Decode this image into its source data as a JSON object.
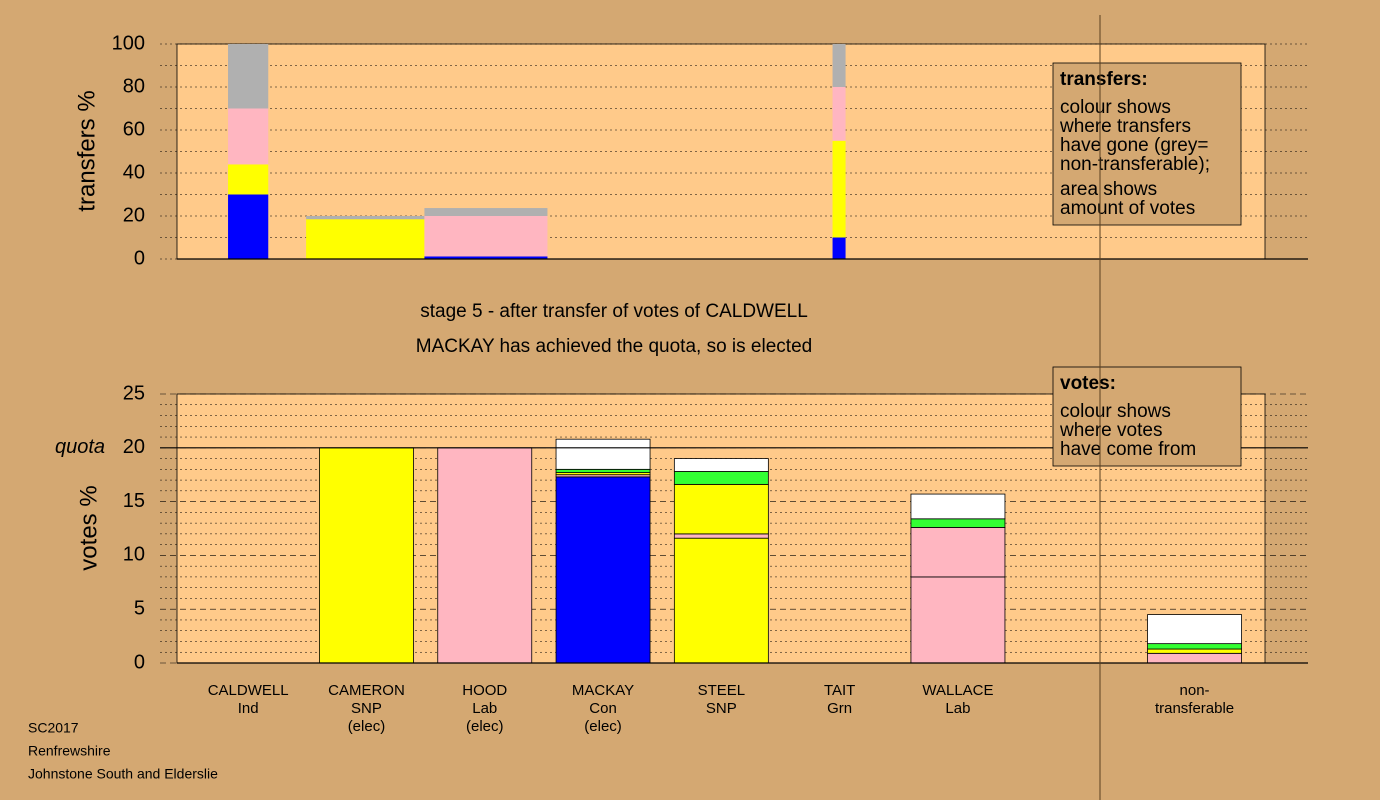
{
  "chart_data": [
    {
      "type": "bar",
      "ylabel": "transfers %",
      "ylim": [
        0,
        100
      ],
      "yticks": [
        0,
        20,
        40,
        60,
        80,
        100
      ],
      "grid": true,
      "legend": {
        "title": "transfers:",
        "paragraphs": [
          [
            "colour shows",
            "where transfers",
            "have gone (grey=",
            "non-transferable);"
          ],
          [
            "area shows",
            "amount of votes"
          ]
        ]
      },
      "bars": [
        {
          "x": [
            0.33,
            0.67
          ],
          "segments": [
            {
              "color": "#0000ff",
              "value": 30
            },
            {
              "color": "#ffff00",
              "value": 14
            },
            {
              "color": "#ffb6c1",
              "value": 26
            },
            {
              "color": "#b0b0b0",
              "value": 30
            }
          ]
        },
        {
          "x": [
            0.99,
            1.99
          ],
          "segments": [
            {
              "color": "#ffff00",
              "value": 18.5
            },
            {
              "color": "#b0b0b0",
              "value": 1.5
            }
          ]
        },
        {
          "x": [
            1.99,
            3.03
          ],
          "segments": [
            {
              "color": "#0000ff",
              "value": 1.2
            },
            {
              "color": "#ffb6c1",
              "value": 18.8
            },
            {
              "color": "#b0b0b0",
              "value": 3.7
            }
          ]
        },
        {
          "x": [
            5.44,
            5.55
          ],
          "segments": [
            {
              "color": "#0000ff",
              "value": 10
            },
            {
              "color": "#ffff00",
              "value": 45
            },
            {
              "color": "#ffb6c1",
              "value": 25
            },
            {
              "color": "#b0b0b0",
              "value": 20
            }
          ]
        }
      ]
    },
    {
      "type": "bar",
      "title": "stage 5 - after transfer of votes of CALDWELL",
      "subtitle": "MACKAY has achieved the quota, so is elected",
      "ylabel": "votes %",
      "ylim": [
        0,
        25
      ],
      "yticks": [
        0,
        5,
        10,
        15,
        20,
        25
      ],
      "grid": true,
      "quota": {
        "label": "quota",
        "value": 20
      },
      "legend": {
        "title": "votes:",
        "paragraphs": [
          [
            "colour shows",
            "where votes",
            "have come from"
          ]
        ]
      },
      "categories": [
        [
          "CALDWELL",
          "Ind"
        ],
        [
          "CAMERON",
          "SNP",
          "(elec)"
        ],
        [
          "HOOD",
          "Lab",
          "(elec)"
        ],
        [
          "MACKAY",
          "Con",
          "(elec)"
        ],
        [
          "STEEL",
          "SNP"
        ],
        [
          "TAIT",
          "Grn"
        ],
        [
          "WALLACE",
          "Lab"
        ],
        null,
        [
          "non-",
          "transferable"
        ]
      ],
      "stacks": [
        [],
        [
          {
            "color": "#ffff00",
            "value": 20
          }
        ],
        [
          {
            "color": "#ffb6c1",
            "value": 20
          }
        ],
        [
          {
            "color": "#0000ff",
            "value": 17.3
          },
          {
            "color": "#ffb6c1",
            "value": 0.2
          },
          {
            "color": "#ffff00",
            "value": 0.2
          },
          {
            "color": "#33ff33",
            "value": 0.3
          },
          {
            "color": "#ffffff",
            "value": 2.8
          }
        ],
        [
          {
            "color": "#ffff00",
            "value": 11.6
          },
          {
            "color": "#ffb6c1",
            "value": 0.4
          },
          {
            "color": "#ffff00",
            "value": 4.6
          },
          {
            "color": "#33ff33",
            "value": 1.2
          },
          {
            "color": "#ffffff",
            "value": 1.2
          }
        ],
        [],
        [
          {
            "color": "#ffb6c1",
            "value": 8.0
          },
          {
            "color": "#ffb6c1",
            "value": 4.6
          },
          {
            "color": "#33ff33",
            "value": 0.8
          },
          {
            "color": "#ffffff",
            "value": 2.3
          }
        ],
        [],
        [
          {
            "color": "#ffb6c1",
            "value": 0.9
          },
          {
            "color": "#ffff00",
            "value": 0.4
          },
          {
            "color": "#33ff33",
            "value": 0.5
          },
          {
            "color": "#ffffff",
            "value": 2.7
          }
        ]
      ]
    }
  ],
  "footer": [
    "SC2017",
    "Renfrewshire",
    "Johnstone South and Elderslie"
  ]
}
